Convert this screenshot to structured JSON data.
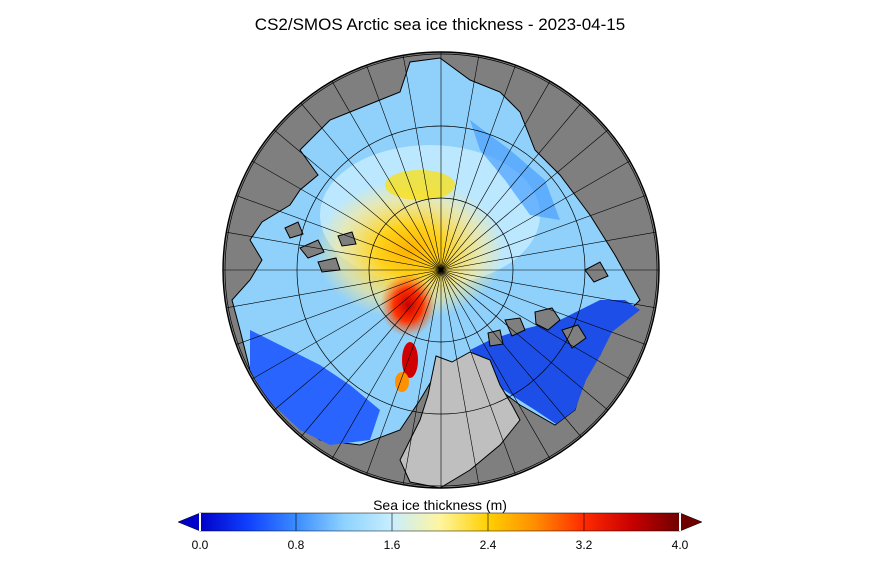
{
  "title": "CS2/SMOS Arctic sea ice thickness - 2023-04-15",
  "product": "CS2/SMOS",
  "date": "2023-04-15",
  "colorbar": {
    "label": "Sea ice thickness (m)",
    "units": "m",
    "min": 0.0,
    "max": 4.0,
    "ticks": [
      "0.0",
      "0.8",
      "1.6",
      "2.4",
      "3.2",
      "4.0"
    ],
    "extend": "both",
    "colormap": [
      "#0000c8",
      "#1040ff",
      "#3a8cff",
      "#8dd2ff",
      "#c8eeff",
      "#fff5a0",
      "#ffd000",
      "#ff8c00",
      "#ff2a00",
      "#c80000",
      "#6e0000"
    ]
  },
  "colors": {
    "land_arctic": "#7f7f7f",
    "land_greenland": "#bfbfbf",
    "graticule": "#000000"
  }
}
